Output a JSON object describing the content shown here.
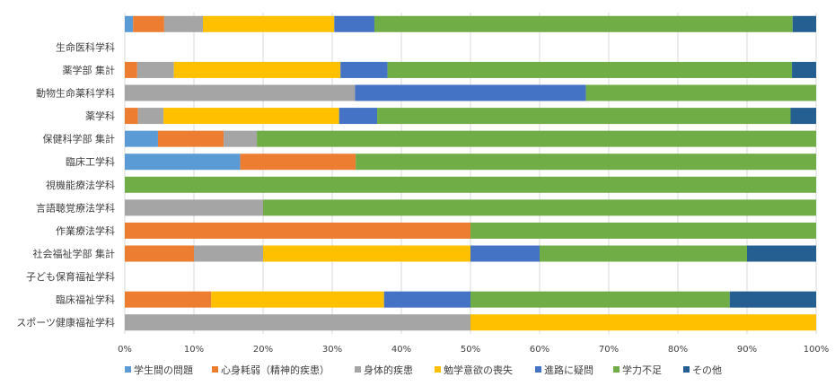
{
  "chart_data": {
    "type": "bar",
    "orientation": "horizontal",
    "stacked": true,
    "percent": true,
    "title": "",
    "xlabel": "",
    "ylabel": "",
    "xlim": [
      0,
      100
    ],
    "xticks": [
      "0%",
      "10%",
      "20%",
      "30%",
      "40%",
      "50%",
      "60%",
      "70%",
      "80%",
      "90%",
      "100%"
    ],
    "categories": [
      "",
      "生命医科学科",
      "薬学部 集計",
      "動物生命薬科学科",
      "薬学科",
      "保健科学部 集計",
      "臨床工学科",
      "視機能療法学科",
      "言語聴覚療法学科",
      "作業療法学科",
      "社会福祉学部 集計",
      "子ども保育福祉学科",
      "臨床福祉学科",
      "スポーツ健康福祉学科"
    ],
    "series": [
      {
        "name": "学生間の問題",
        "color": "#5b9bd5",
        "values": [
          1.2,
          0,
          0,
          0,
          0,
          4.8,
          16.7,
          0,
          0,
          0,
          0,
          0,
          0,
          0
        ]
      },
      {
        "name": "心身耗弱（精神的疾患）",
        "color": "#ed7d31",
        "values": [
          4.5,
          0,
          1.8,
          0,
          1.9,
          9.5,
          16.7,
          0,
          0,
          50,
          10,
          0,
          12.5,
          0
        ]
      },
      {
        "name": "身体的疾患",
        "color": "#a5a5a5",
        "values": [
          5.6,
          0,
          5.3,
          33.3,
          3.7,
          4.8,
          0,
          0,
          20,
          0,
          10,
          0,
          0,
          50
        ]
      },
      {
        "name": "勉学意欲の喪失",
        "color": "#ffc000",
        "values": [
          19,
          0,
          24.1,
          0,
          25.4,
          0,
          0,
          0,
          0,
          0,
          30,
          0,
          25,
          50
        ]
      },
      {
        "name": "進路に疑問",
        "color": "#4472c4",
        "values": [
          5.8,
          0,
          6.8,
          33.4,
          5.5,
          0,
          0,
          0,
          0,
          0,
          10,
          0,
          12.5,
          0
        ]
      },
      {
        "name": "学力不足",
        "color": "#70ad47",
        "values": [
          60.5,
          0,
          58.5,
          33.3,
          59.8,
          80.9,
          66.6,
          100,
          80,
          50,
          30,
          0,
          37.5,
          0
        ]
      },
      {
        "name": "その他",
        "color": "#255e91",
        "values": [
          3.4,
          0,
          3.5,
          0,
          3.7,
          0,
          0,
          0,
          0,
          0,
          10,
          0,
          12.5,
          0
        ]
      }
    ],
    "legend_position": "bottom",
    "grid": true
  }
}
